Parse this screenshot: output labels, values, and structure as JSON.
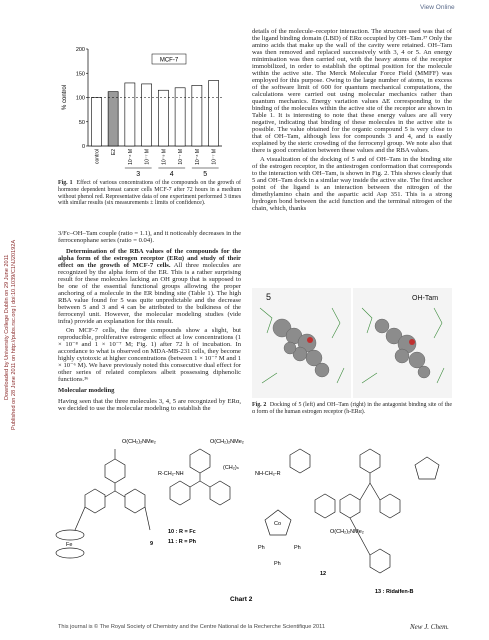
{
  "header": {
    "view_online": "View Online"
  },
  "margin": {
    "downloaded": "Downloaded by University College Dublin on 29 June 2011",
    "published": "Published on 28 June 2011 on http://pubs.rsc.org | doi:10.1039/C1NJ20192A"
  },
  "figure1": {
    "type": "bar",
    "ylabel": "% control",
    "legend": "MCF-7",
    "categories": [
      "control",
      "E2",
      "10⁻⁸ M",
      "10⁻⁷ M",
      "10⁻⁸ M",
      "10⁻⁷ M",
      "10⁻⁸ M",
      "10⁻⁷ M"
    ],
    "values": [
      100,
      112,
      130,
      128,
      115,
      120,
      125,
      135
    ],
    "colors": [
      "#ffffff",
      "#9a9a9a",
      "#ffffff",
      "#ffffff",
      "#ffffff",
      "#ffffff",
      "#ffffff",
      "#ffffff"
    ],
    "ylim": [
      0,
      200
    ],
    "yticks": [
      0,
      50,
      100,
      150,
      200
    ],
    "reference_line": 100,
    "groups": [
      "3",
      "4",
      "5"
    ]
  },
  "figure1_caption": {
    "label": "Fig. 1",
    "text": "Effect of various concentrations of the compounds on the growth of hormone dependent breast cancer cells MCF-7 after 72 hours in a medium without phenol red. Representative data of one experiment performed 3 times with similar results (six measurements ± limits of confidence)."
  },
  "left_text": {
    "p1": "3/Fc–OH–Tam couple (ratio = 1.1), and it noticeably decreases in the ferrocenophane series (ratio = 0.04).",
    "p2_heading": "Determination of the RBA values of the compounds for the alpha form of the estrogen receptor (ERα) and study of their effect on the growth of MCF-7 cells.",
    "p2": "All three molecules are recognized by the alpha form of the ER. This is a rather surprising result for these molecules lacking an OH group that is supposed to be one of the essential functional groups allowing the proper anchoring of a molecule in the ER binding site (Table 1). The high RBA value found for 5 was quite unpredictable and the decrease between 5 and 3 and 4 can be attributed to the bulkiness of the ferrocenyl unit. However, the molecular modeling studies (vide infra) provide an explanation for this result.",
    "p3": "On MCF-7 cells, the three compounds show a slight, but reproducible, proliferative estrogenic effect at low concentrations (1 × 10⁻⁸ and 1 × 10⁻⁷ M; Fig. 1) after 72 h of incubation. In accordance to what is observed on MDA-MB-231 cells, they become highly cytotoxic at higher concentrations (between 1 × 10⁻⁷ M and 1 × 10⁻⁶ M). We have previously noted this consecutive dual effect for other series of related complexes albeit possessing diphenolic functions.³⁶",
    "heading": "Molecular modeling",
    "p4": "Having seen that the three molecules 3, 4, 5 are recognized by ERα, we decided to use the molecular modeling to establish the"
  },
  "right_text": {
    "p1": "details of the molecule–receptor interaction. The structure used was that of the ligand binding domain (LBD) of ERα occupied by OH–Tam.³⁷ Only the amino acids that make up the wall of the cavity were retained. OH–Tam was then removed and replaced successively with 3, 4 or 5. An energy minimisation was then carried out, with the heavy atoms of the receptor immobilized, in order to establish the optimal position for the molecule within the active site. The Merck Molecular Force Field (MMFF) was employed for this purpose. Owing to the large number of atoms, in excess of the software limit of 600 for quantum mechanical computations, the calculations were carried out using molecular mechanics rather than quantum mechanics. Energy variation values ΔE corresponding to the binding of the molecules within the active site of the receptor are shown in Table 1. It is interesting to note that these energy values are all very negative, indicating that binding of these molecules in the active site is possible. The value obtained for the organic compound 5 is very close to that of OH–Tam, although less for compounds 3 and 4, and is easily explained by the steric crowding of the ferrocenyl group. We note also that there is good correlation between these values and the RBA values.",
    "p2": "A visualization of the docking of 5 and of OH–Tam in the binding site of the estrogen receptor, in the antiestrogen conformation that corresponds to the interaction with OH–Tam, is shown in Fig. 2. This shows clearly that 5 and OH–Tam dock in a similar way inside the active site. The first anchor point of the ligand is an interaction between the nitrogen of the dimethylamino chain and the aspartic acid Asp 351. This is a strong hydrogen bond between the acid function and the terminal nitrogen of the chain, which, thanks"
  },
  "figure2": {
    "left_label": "5",
    "right_label": "OH-Tam"
  },
  "figure2_caption": {
    "label": "Fig. 2",
    "text": "Docking of 5 (left) and OH–Tam (right) in the antagonist binding site of the α form of the human estrogen receptor (h-ERα)."
  },
  "chart2": {
    "label": "Chart 2",
    "labels": [
      "O(CH₂)₂NMe₂",
      "R-CH₂-NH",
      "(CH₂)ₙ",
      "NH-CH₂-R",
      "10 : R = Fc",
      "11 : R = Ph",
      "O(CH₂)₂NMe₂",
      "Fe",
      "9",
      "Ph",
      "Co",
      "Ph",
      "Ph",
      "O(CH₂)₂NMe₂",
      "12",
      "13 : Ridaifen-B"
    ]
  },
  "footer": {
    "left": "This journal is © The Royal Society of Chemistry and the Centre National de la Recherche Scientifique 2011",
    "right": "New J. Chem."
  }
}
